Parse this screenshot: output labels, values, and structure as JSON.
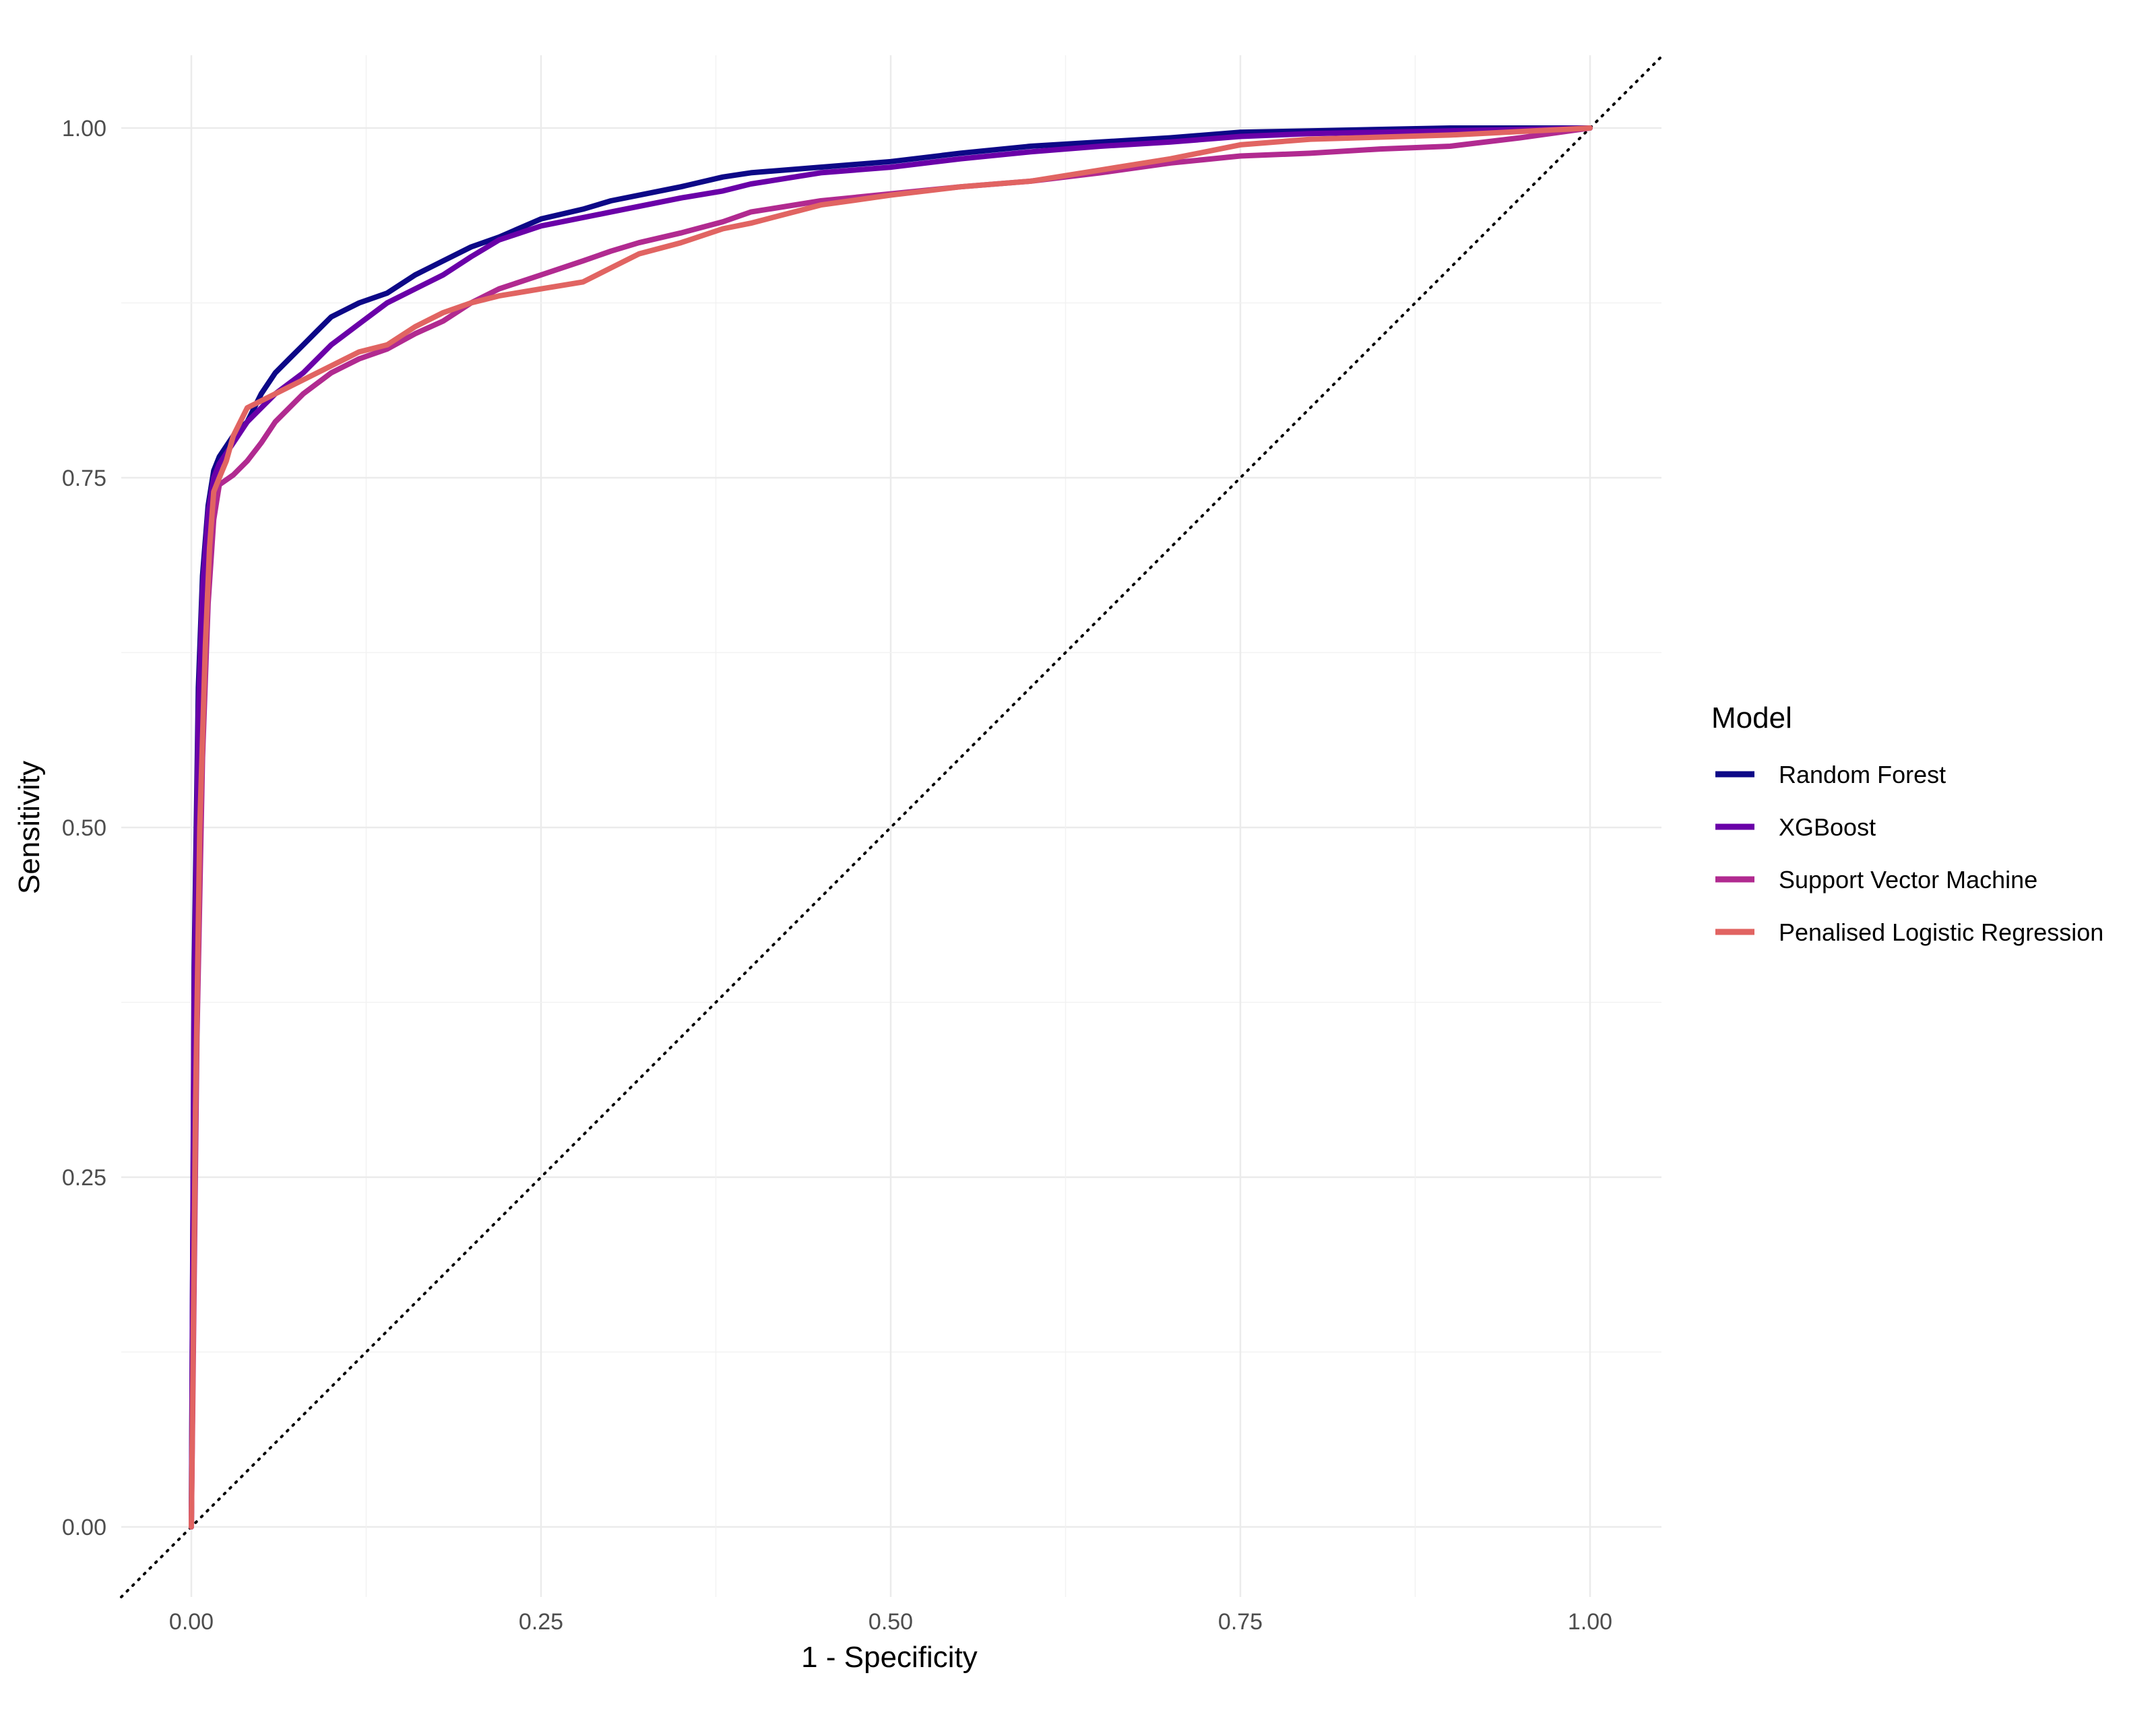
{
  "chart_data": {
    "type": "line",
    "title": "",
    "xlabel": "1 - Specificity",
    "ylabel": "Sensitivity",
    "xlim": [
      0,
      1
    ],
    "ylim": [
      0,
      1
    ],
    "x_ticks": [
      "0.00",
      "0.25",
      "0.50",
      "0.75",
      "1.00"
    ],
    "y_ticks": [
      "0.00",
      "0.25",
      "0.50",
      "0.75",
      "1.00"
    ],
    "grid": true,
    "reference_line": "diagonal, dotted",
    "legend": {
      "title": "Model",
      "position": "right"
    },
    "series": [
      {
        "name": "Random Forest",
        "color": "#0d0887",
        "points": [
          [
            0,
            0
          ],
          [
            0.002,
            0.4
          ],
          [
            0.005,
            0.6
          ],
          [
            0.008,
            0.68
          ],
          [
            0.012,
            0.73
          ],
          [
            0.016,
            0.755
          ],
          [
            0.02,
            0.765
          ],
          [
            0.03,
            0.78
          ],
          [
            0.04,
            0.79
          ],
          [
            0.05,
            0.81
          ],
          [
            0.06,
            0.825
          ],
          [
            0.07,
            0.835
          ],
          [
            0.08,
            0.845
          ],
          [
            0.09,
            0.855
          ],
          [
            0.1,
            0.865
          ],
          [
            0.12,
            0.875
          ],
          [
            0.14,
            0.882
          ],
          [
            0.16,
            0.895
          ],
          [
            0.18,
            0.905
          ],
          [
            0.2,
            0.915
          ],
          [
            0.22,
            0.922
          ],
          [
            0.25,
            0.935
          ],
          [
            0.28,
            0.942
          ],
          [
            0.3,
            0.948
          ],
          [
            0.35,
            0.958
          ],
          [
            0.38,
            0.965
          ],
          [
            0.4,
            0.968
          ],
          [
            0.45,
            0.972
          ],
          [
            0.5,
            0.976
          ],
          [
            0.55,
            0.982
          ],
          [
            0.6,
            0.987
          ],
          [
            0.65,
            0.99
          ],
          [
            0.7,
            0.993
          ],
          [
            0.75,
            0.997
          ],
          [
            0.8,
            0.998
          ],
          [
            0.9,
            1.0
          ],
          [
            1.0,
            1.0
          ]
        ]
      },
      {
        "name": "XGBoost",
        "color": "#6a00a8",
        "points": [
          [
            0,
            0
          ],
          [
            0.002,
            0.38
          ],
          [
            0.005,
            0.58
          ],
          [
            0.008,
            0.67
          ],
          [
            0.012,
            0.725
          ],
          [
            0.016,
            0.75
          ],
          [
            0.02,
            0.76
          ],
          [
            0.03,
            0.775
          ],
          [
            0.04,
            0.79
          ],
          [
            0.05,
            0.8
          ],
          [
            0.06,
            0.81
          ],
          [
            0.08,
            0.825
          ],
          [
            0.1,
            0.845
          ],
          [
            0.12,
            0.86
          ],
          [
            0.14,
            0.875
          ],
          [
            0.16,
            0.885
          ],
          [
            0.18,
            0.895
          ],
          [
            0.2,
            0.908
          ],
          [
            0.22,
            0.92
          ],
          [
            0.25,
            0.93
          ],
          [
            0.3,
            0.94
          ],
          [
            0.35,
            0.95
          ],
          [
            0.38,
            0.955
          ],
          [
            0.4,
            0.96
          ],
          [
            0.45,
            0.968
          ],
          [
            0.5,
            0.972
          ],
          [
            0.55,
            0.978
          ],
          [
            0.6,
            0.983
          ],
          [
            0.65,
            0.987
          ],
          [
            0.7,
            0.99
          ],
          [
            0.75,
            0.994
          ],
          [
            0.8,
            0.996
          ],
          [
            0.9,
            0.998
          ],
          [
            1.0,
            1.0
          ]
        ]
      },
      {
        "name": "Support Vector Machine",
        "color": "#b12a90",
        "points": [
          [
            0,
            0
          ],
          [
            0.004,
            0.35
          ],
          [
            0.008,
            0.55
          ],
          [
            0.012,
            0.66
          ],
          [
            0.016,
            0.72
          ],
          [
            0.02,
            0.745
          ],
          [
            0.03,
            0.752
          ],
          [
            0.04,
            0.762
          ],
          [
            0.05,
            0.775
          ],
          [
            0.06,
            0.79
          ],
          [
            0.08,
            0.81
          ],
          [
            0.1,
            0.825
          ],
          [
            0.12,
            0.835
          ],
          [
            0.14,
            0.842
          ],
          [
            0.16,
            0.853
          ],
          [
            0.18,
            0.862
          ],
          [
            0.2,
            0.875
          ],
          [
            0.22,
            0.885
          ],
          [
            0.25,
            0.895
          ],
          [
            0.28,
            0.905
          ],
          [
            0.3,
            0.912
          ],
          [
            0.32,
            0.918
          ],
          [
            0.35,
            0.925
          ],
          [
            0.38,
            0.933
          ],
          [
            0.4,
            0.94
          ],
          [
            0.45,
            0.948
          ],
          [
            0.5,
            0.953
          ],
          [
            0.55,
            0.958
          ],
          [
            0.6,
            0.962
          ],
          [
            0.65,
            0.968
          ],
          [
            0.7,
            0.975
          ],
          [
            0.75,
            0.98
          ],
          [
            0.8,
            0.982
          ],
          [
            0.85,
            0.985
          ],
          [
            0.9,
            0.987
          ],
          [
            0.95,
            0.993
          ],
          [
            1.0,
            1.0
          ]
        ]
      },
      {
        "name": "Penalised Logistic Regression",
        "color": "#e16462",
        "points": [
          [
            0,
            0
          ],
          [
            0.003,
            0.3
          ],
          [
            0.006,
            0.5
          ],
          [
            0.01,
            0.63
          ],
          [
            0.013,
            0.7
          ],
          [
            0.016,
            0.74
          ],
          [
            0.02,
            0.75
          ],
          [
            0.025,
            0.762
          ],
          [
            0.03,
            0.78
          ],
          [
            0.04,
            0.8
          ],
          [
            0.05,
            0.805
          ],
          [
            0.07,
            0.815
          ],
          [
            0.09,
            0.825
          ],
          [
            0.1,
            0.83
          ],
          [
            0.12,
            0.84
          ],
          [
            0.14,
            0.845
          ],
          [
            0.16,
            0.858
          ],
          [
            0.18,
            0.868
          ],
          [
            0.2,
            0.875
          ],
          [
            0.22,
            0.88
          ],
          [
            0.25,
            0.885
          ],
          [
            0.28,
            0.89
          ],
          [
            0.3,
            0.9
          ],
          [
            0.32,
            0.91
          ],
          [
            0.35,
            0.918
          ],
          [
            0.38,
            0.928
          ],
          [
            0.4,
            0.932
          ],
          [
            0.45,
            0.945
          ],
          [
            0.5,
            0.952
          ],
          [
            0.55,
            0.958
          ],
          [
            0.6,
            0.962
          ],
          [
            0.65,
            0.97
          ],
          [
            0.7,
            0.978
          ],
          [
            0.75,
            0.988
          ],
          [
            0.8,
            0.992
          ],
          [
            0.9,
            0.995
          ],
          [
            1.0,
            1.0
          ]
        ]
      }
    ]
  }
}
